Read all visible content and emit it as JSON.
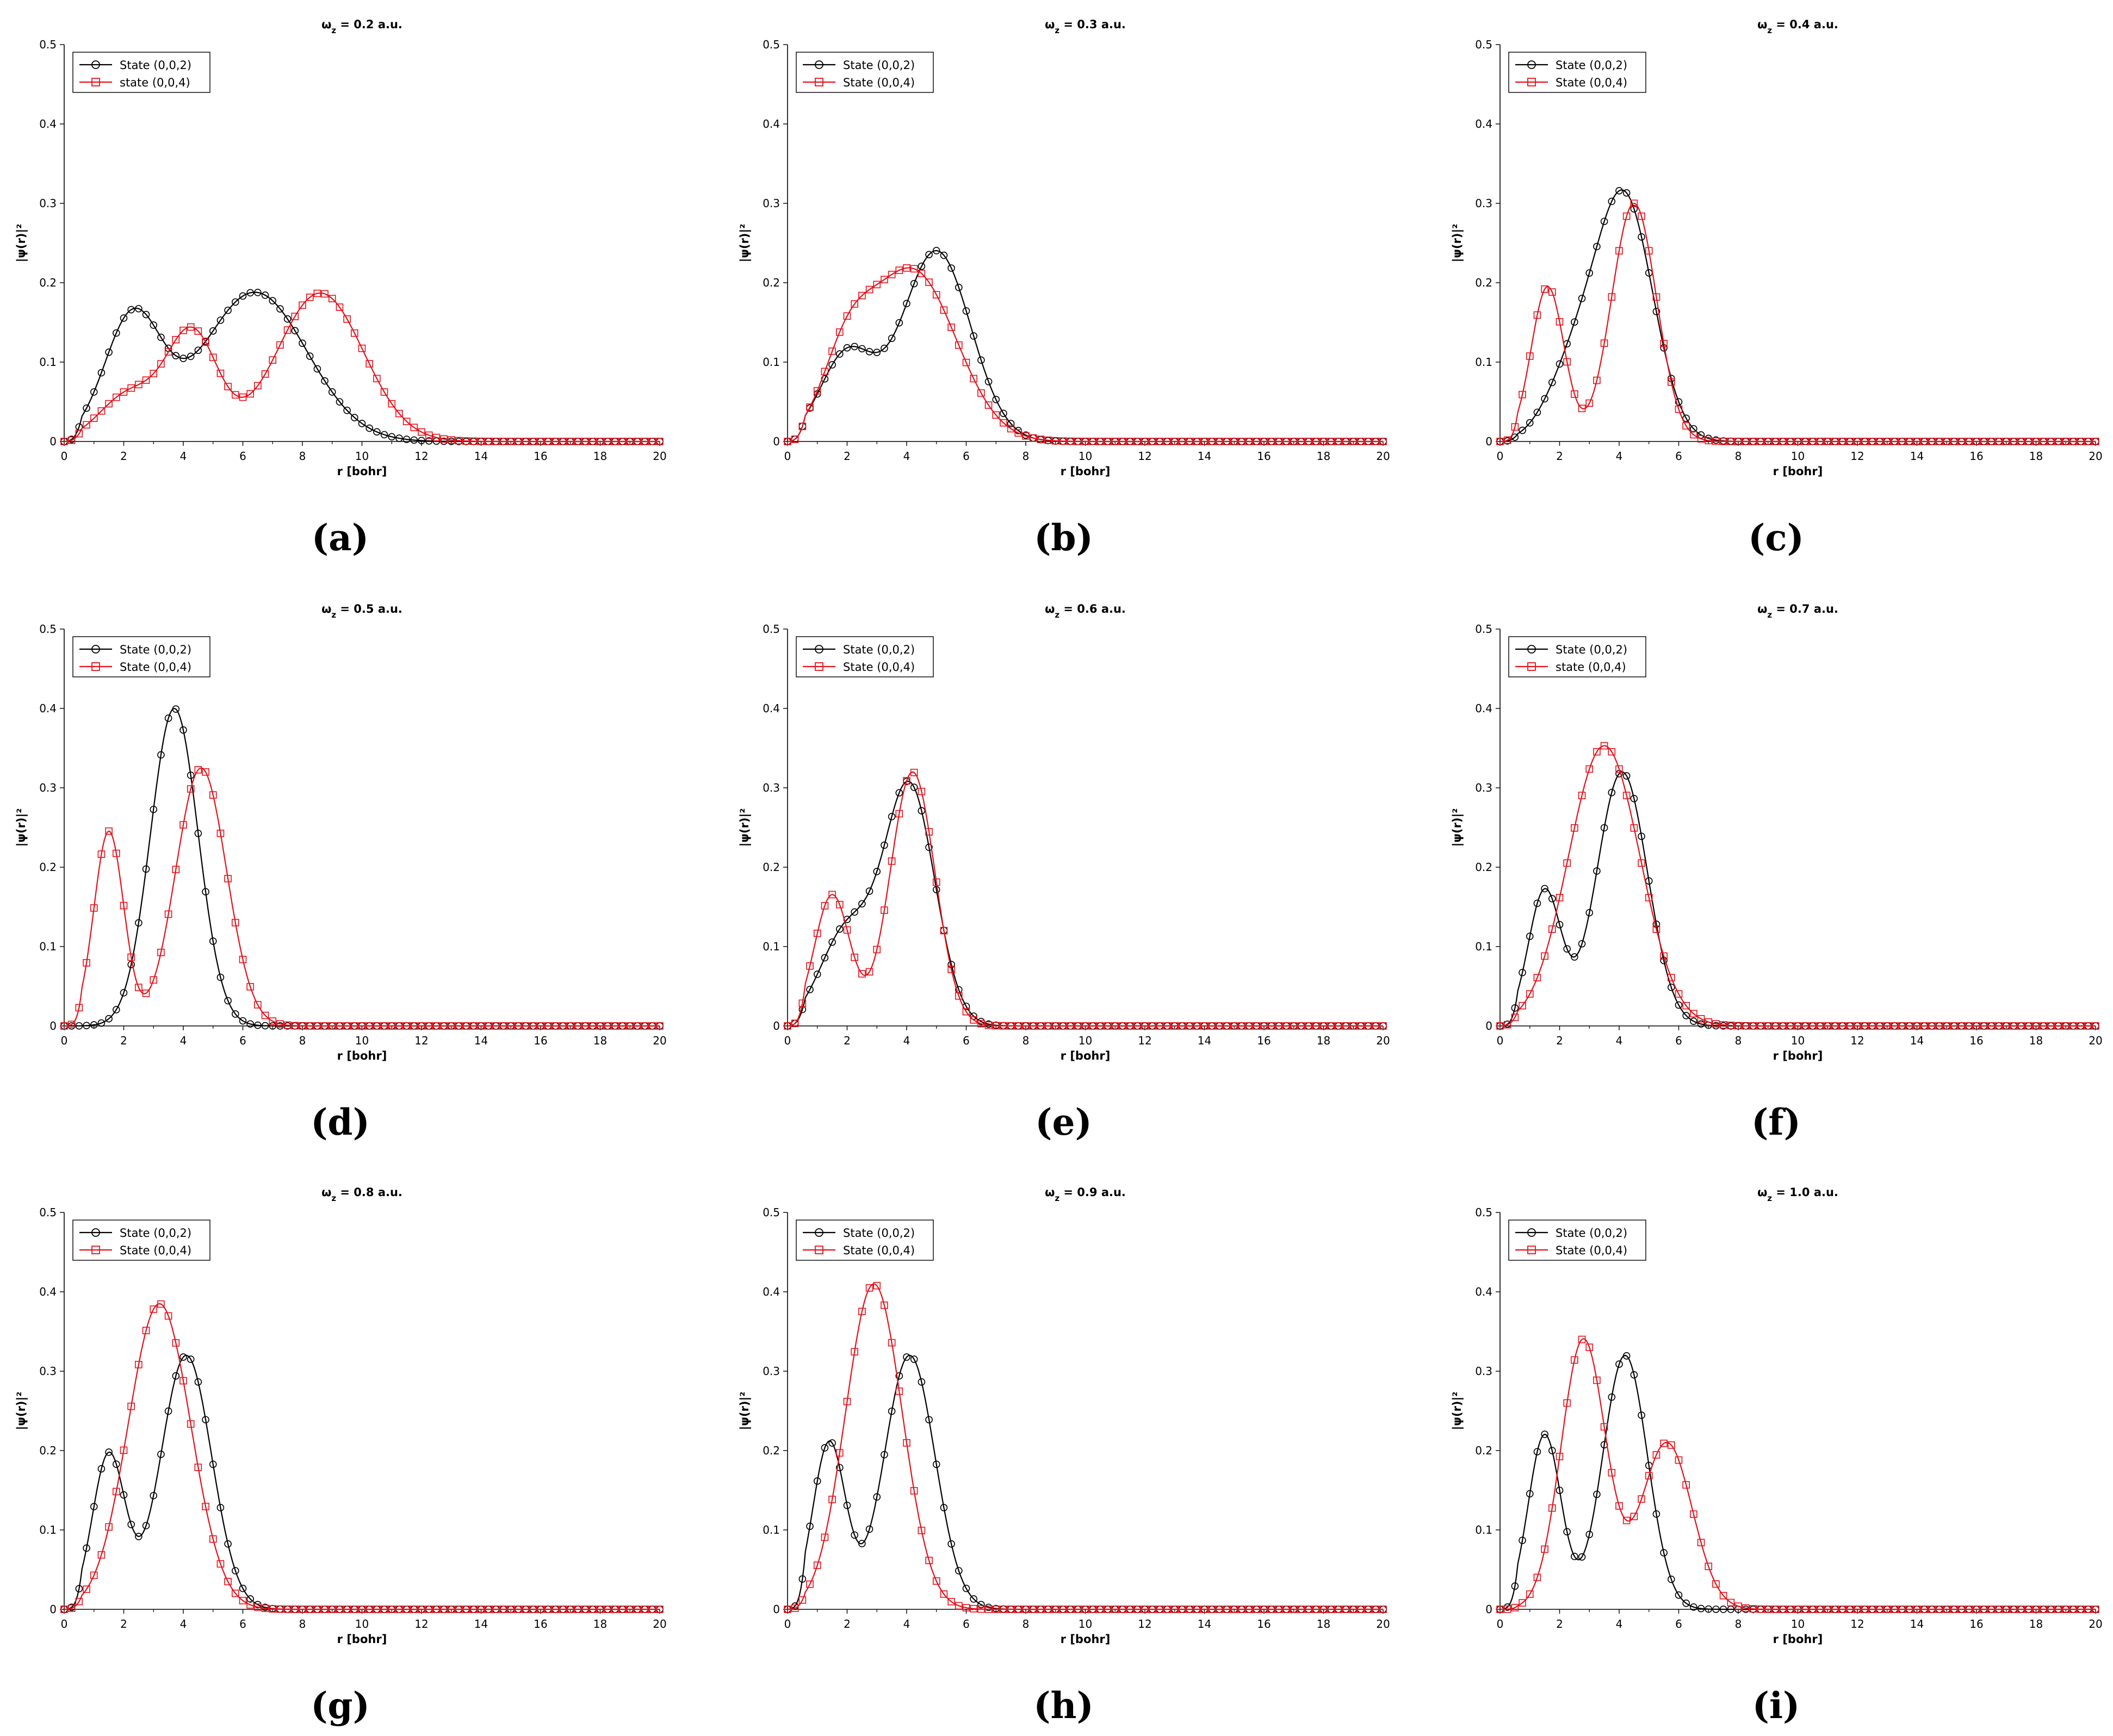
{
  "series_styles": {
    "state002": {
      "color": "#000000",
      "marker": "circle"
    },
    "state004": {
      "color": "#e8101a",
      "marker": "square"
    }
  },
  "chart_data": [
    {
      "type": "line",
      "panel": "(a)",
      "title": "ω<sub>z</sub> = 0.2 a.u.",
      "title_text": "ωz = 0.2 a.u.",
      "xlabel": "r [bohr]",
      "ylabel": "|ψ(r)|²",
      "xlim": [
        0,
        20
      ],
      "ylim": [
        0,
        0.5
      ],
      "xticks": [
        "0",
        "2",
        "4",
        "6",
        "8",
        "10",
        "12",
        "14",
        "16",
        "18",
        "20"
      ],
      "yticks": [
        "0",
        "0.1",
        "0.2",
        "0.3",
        "0.4",
        "0.5"
      ],
      "legend": "top-left",
      "series": [
        {
          "key": "state002",
          "name": "State (0,0,2)",
          "peaks": [
            [
              2.3,
              0.155,
              0.95
            ],
            [
              6.4,
              0.188,
              1.75
            ]
          ]
        },
        {
          "key": "state004",
          "name": "state (0,0,4)",
          "peaks": [
            [
              2.2,
              0.06,
              1.0
            ],
            [
              4.3,
              0.135,
              0.85
            ],
            [
              8.6,
              0.187,
              1.45
            ]
          ]
        }
      ]
    },
    {
      "type": "line",
      "panel": "(b)",
      "title": "ωz = 0.3 a.u.",
      "title_text": "ωz = 0.3 a.u.",
      "xlabel": "r [bohr]",
      "ylabel": "|ψ(r)|²",
      "xlim": [
        0,
        20
      ],
      "ylim": [
        0,
        0.5
      ],
      "xticks": [
        "0",
        "2",
        "4",
        "6",
        "8",
        "10",
        "12",
        "14",
        "16",
        "18",
        "20"
      ],
      "yticks": [
        "0",
        "0.1",
        "0.2",
        "0.3",
        "0.4",
        "0.5"
      ],
      "legend": "top-left",
      "series": [
        {
          "key": "state002",
          "name": "State (0,0,2)",
          "peaks": [
            [
              2.0,
              0.11,
              0.9
            ],
            [
              5.0,
              0.24,
              1.15
            ]
          ]
        },
        {
          "key": "state004",
          "name": "State (0,0,4)",
          "peaks": [
            [
              2.0,
              0.09,
              0.85
            ],
            [
              4.2,
              0.215,
              1.45
            ]
          ]
        }
      ]
    },
    {
      "type": "line",
      "panel": "(c)",
      "title": "ωz = 0.4 a.u.",
      "title_text": "ωz = 0.4 a.u.",
      "xlabel": "r [bohr]",
      "ylabel": "|ψ(r)|²",
      "xlim": [
        0,
        20
      ],
      "ylim": [
        0,
        0.5
      ],
      "xticks": [
        "0",
        "2",
        "4",
        "6",
        "8",
        "10",
        "12",
        "14",
        "16",
        "18",
        "20"
      ],
      "yticks": [
        "0",
        "0.1",
        "0.2",
        "0.3",
        "0.4",
        "0.5"
      ],
      "legend": "top-left",
      "series": [
        {
          "key": "state002",
          "name": "State (0,0,2)",
          "peaks": [
            [
              2.5,
              0.09,
              0.9
            ],
            [
              4.2,
              0.3,
              0.95
            ]
          ]
        },
        {
          "key": "state004",
          "name": "State (0,0,4)",
          "peaks": [
            [
              1.6,
              0.195,
              0.55
            ],
            [
              4.5,
              0.3,
              0.75
            ]
          ]
        }
      ]
    },
    {
      "type": "line",
      "panel": "(d)",
      "title": "ωz = 0.5 a.u.",
      "title_text": "ωz = 0.5 a.u.",
      "xlabel": "r [bohr]",
      "ylabel": "|ψ(r)|²",
      "xlim": [
        0,
        20
      ],
      "ylim": [
        0,
        0.5
      ],
      "xticks": [
        "0",
        "2",
        "4",
        "6",
        "8",
        "10",
        "12",
        "14",
        "16",
        "18",
        "20"
      ],
      "yticks": [
        "0",
        "0.1",
        "0.2",
        "0.3",
        "0.4",
        "0.5"
      ],
      "legend": "top-left",
      "series": [
        {
          "key": "state002",
          "name": "State (0,0,2)",
          "peaks": [
            [
              3.7,
              0.4,
              0.8
            ]
          ]
        },
        {
          "key": "state004",
          "name": "State (0,0,4)",
          "peaks": [
            [
              1.5,
              0.245,
              0.5
            ],
            [
              4.6,
              0.325,
              0.85
            ]
          ]
        }
      ]
    },
    {
      "type": "line",
      "panel": "(e)",
      "title": "ωz = 0.6 a.u.",
      "title_text": "ωz = 0.6 a.u.",
      "xlabel": "r [bohr]",
      "ylabel": "|ψ(r)|²",
      "xlim": [
        0,
        20
      ],
      "ylim": [
        0,
        0.5
      ],
      "xticks": [
        "0",
        "2",
        "4",
        "6",
        "8",
        "10",
        "12",
        "14",
        "16",
        "18",
        "20"
      ],
      "yticks": [
        "0",
        "0.1",
        "0.2",
        "0.3",
        "0.4",
        "0.5"
      ],
      "legend": "top-left",
      "series": [
        {
          "key": "state002",
          "name": "State (0,0,2)",
          "peaks": [
            [
              2.0,
              0.12,
              0.9
            ],
            [
              4.1,
              0.3,
              0.85
            ]
          ]
        },
        {
          "key": "state004",
          "name": "State (0,0,4)",
          "peaks": [
            [
              1.5,
              0.165,
              0.6
            ],
            [
              4.2,
              0.32,
              0.75
            ]
          ]
        }
      ]
    },
    {
      "type": "line",
      "panel": "(f)",
      "title": "ωz = 0.7 a.u.",
      "title_text": "ωz = 0.7 a.u.",
      "xlabel": "r [bohr]",
      "ylabel": "|ψ(r)|²",
      "xlim": [
        0,
        20
      ],
      "ylim": [
        0,
        0.5
      ],
      "xticks": [
        "0",
        "2",
        "4",
        "6",
        "8",
        "10",
        "12",
        "14",
        "16",
        "18",
        "20"
      ],
      "yticks": [
        "0",
        "0.1",
        "0.2",
        "0.3",
        "0.4",
        "0.5"
      ],
      "legend": "top-left",
      "series": [
        {
          "key": "state002",
          "name": "State (0,0,2)",
          "peaks": [
            [
              1.5,
              0.17,
              0.55
            ],
            [
              4.1,
              0.32,
              0.85
            ]
          ]
        },
        {
          "key": "state004",
          "name": "state (0,0,4)",
          "peaks": [
            [
              3.5,
              0.353,
              1.2
            ]
          ]
        }
      ]
    },
    {
      "type": "line",
      "panel": "(g)",
      "title": "ωz = 0.8 a.u.",
      "title_text": "ωz = 0.8 a.u.",
      "xlabel": "r [bohr]",
      "ylabel": "|ψ(r)|²",
      "xlim": [
        0,
        20
      ],
      "ylim": [
        0,
        0.5
      ],
      "xticks": [
        "0",
        "2",
        "4",
        "6",
        "8",
        "10",
        "12",
        "14",
        "16",
        "18",
        "20"
      ],
      "yticks": [
        "0",
        "0.1",
        "0.2",
        "0.3",
        "0.4",
        "0.5"
      ],
      "legend": "top-left",
      "series": [
        {
          "key": "state002",
          "name": "State (0,0,2)",
          "peaks": [
            [
              1.5,
              0.195,
              0.55
            ],
            [
              4.1,
              0.32,
              0.85
            ]
          ]
        },
        {
          "key": "state004",
          "name": "State (0,0,4)",
          "peaks": [
            [
              3.2,
              0.385,
              1.05
            ]
          ]
        }
      ]
    },
    {
      "type": "line",
      "panel": "(h)",
      "title": "ωz = 0.9 a.u.",
      "title_text": "ωz = 0.9 a.u.",
      "xlabel": "r [bohr]",
      "ylabel": "|ψ(r)|²",
      "xlim": [
        0,
        20
      ],
      "ylim": [
        0,
        0.5
      ],
      "xticks": [
        "0",
        "2",
        "4",
        "6",
        "8",
        "10",
        "12",
        "14",
        "16",
        "18",
        "20"
      ],
      "yticks": [
        "0",
        "0.1",
        "0.2",
        "0.3",
        "0.4",
        "0.5"
      ],
      "legend": "top-left",
      "series": [
        {
          "key": "state002",
          "name": "State (0,0,2)",
          "peaks": [
            [
              1.4,
              0.21,
              0.55
            ],
            [
              4.1,
              0.32,
              0.85
            ]
          ]
        },
        {
          "key": "state004",
          "name": "State (0,0,4)",
          "peaks": [
            [
              2.9,
              0.41,
              0.95
            ]
          ]
        }
      ]
    },
    {
      "type": "line",
      "panel": "(i)",
      "title": "ωz = 1.0 a.u.",
      "title_text": "ωz = 1.0 a.u.",
      "xlabel": "r [bohr]",
      "ylabel": "|ψ(r)|²",
      "xlim": [
        0,
        20
      ],
      "ylim": [
        0,
        0.5
      ],
      "xticks": [
        "0",
        "2",
        "4",
        "6",
        "8",
        "10",
        "12",
        "14",
        "16",
        "18",
        "20"
      ],
      "yticks": [
        "0",
        "0.1",
        "0.2",
        "0.3",
        "0.4",
        "0.5"
      ],
      "legend": "top-left",
      "series": [
        {
          "key": "state002",
          "name": "State (0,0,2)",
          "peaks": [
            [
              1.5,
              0.22,
              0.55
            ],
            [
              4.2,
              0.32,
              0.75
            ]
          ]
        },
        {
          "key": "state004",
          "name": "State (0,0,4)",
          "peaks": [
            [
              2.8,
              0.34,
              0.75
            ],
            [
              5.6,
              0.21,
              0.85
            ]
          ]
        }
      ]
    }
  ]
}
